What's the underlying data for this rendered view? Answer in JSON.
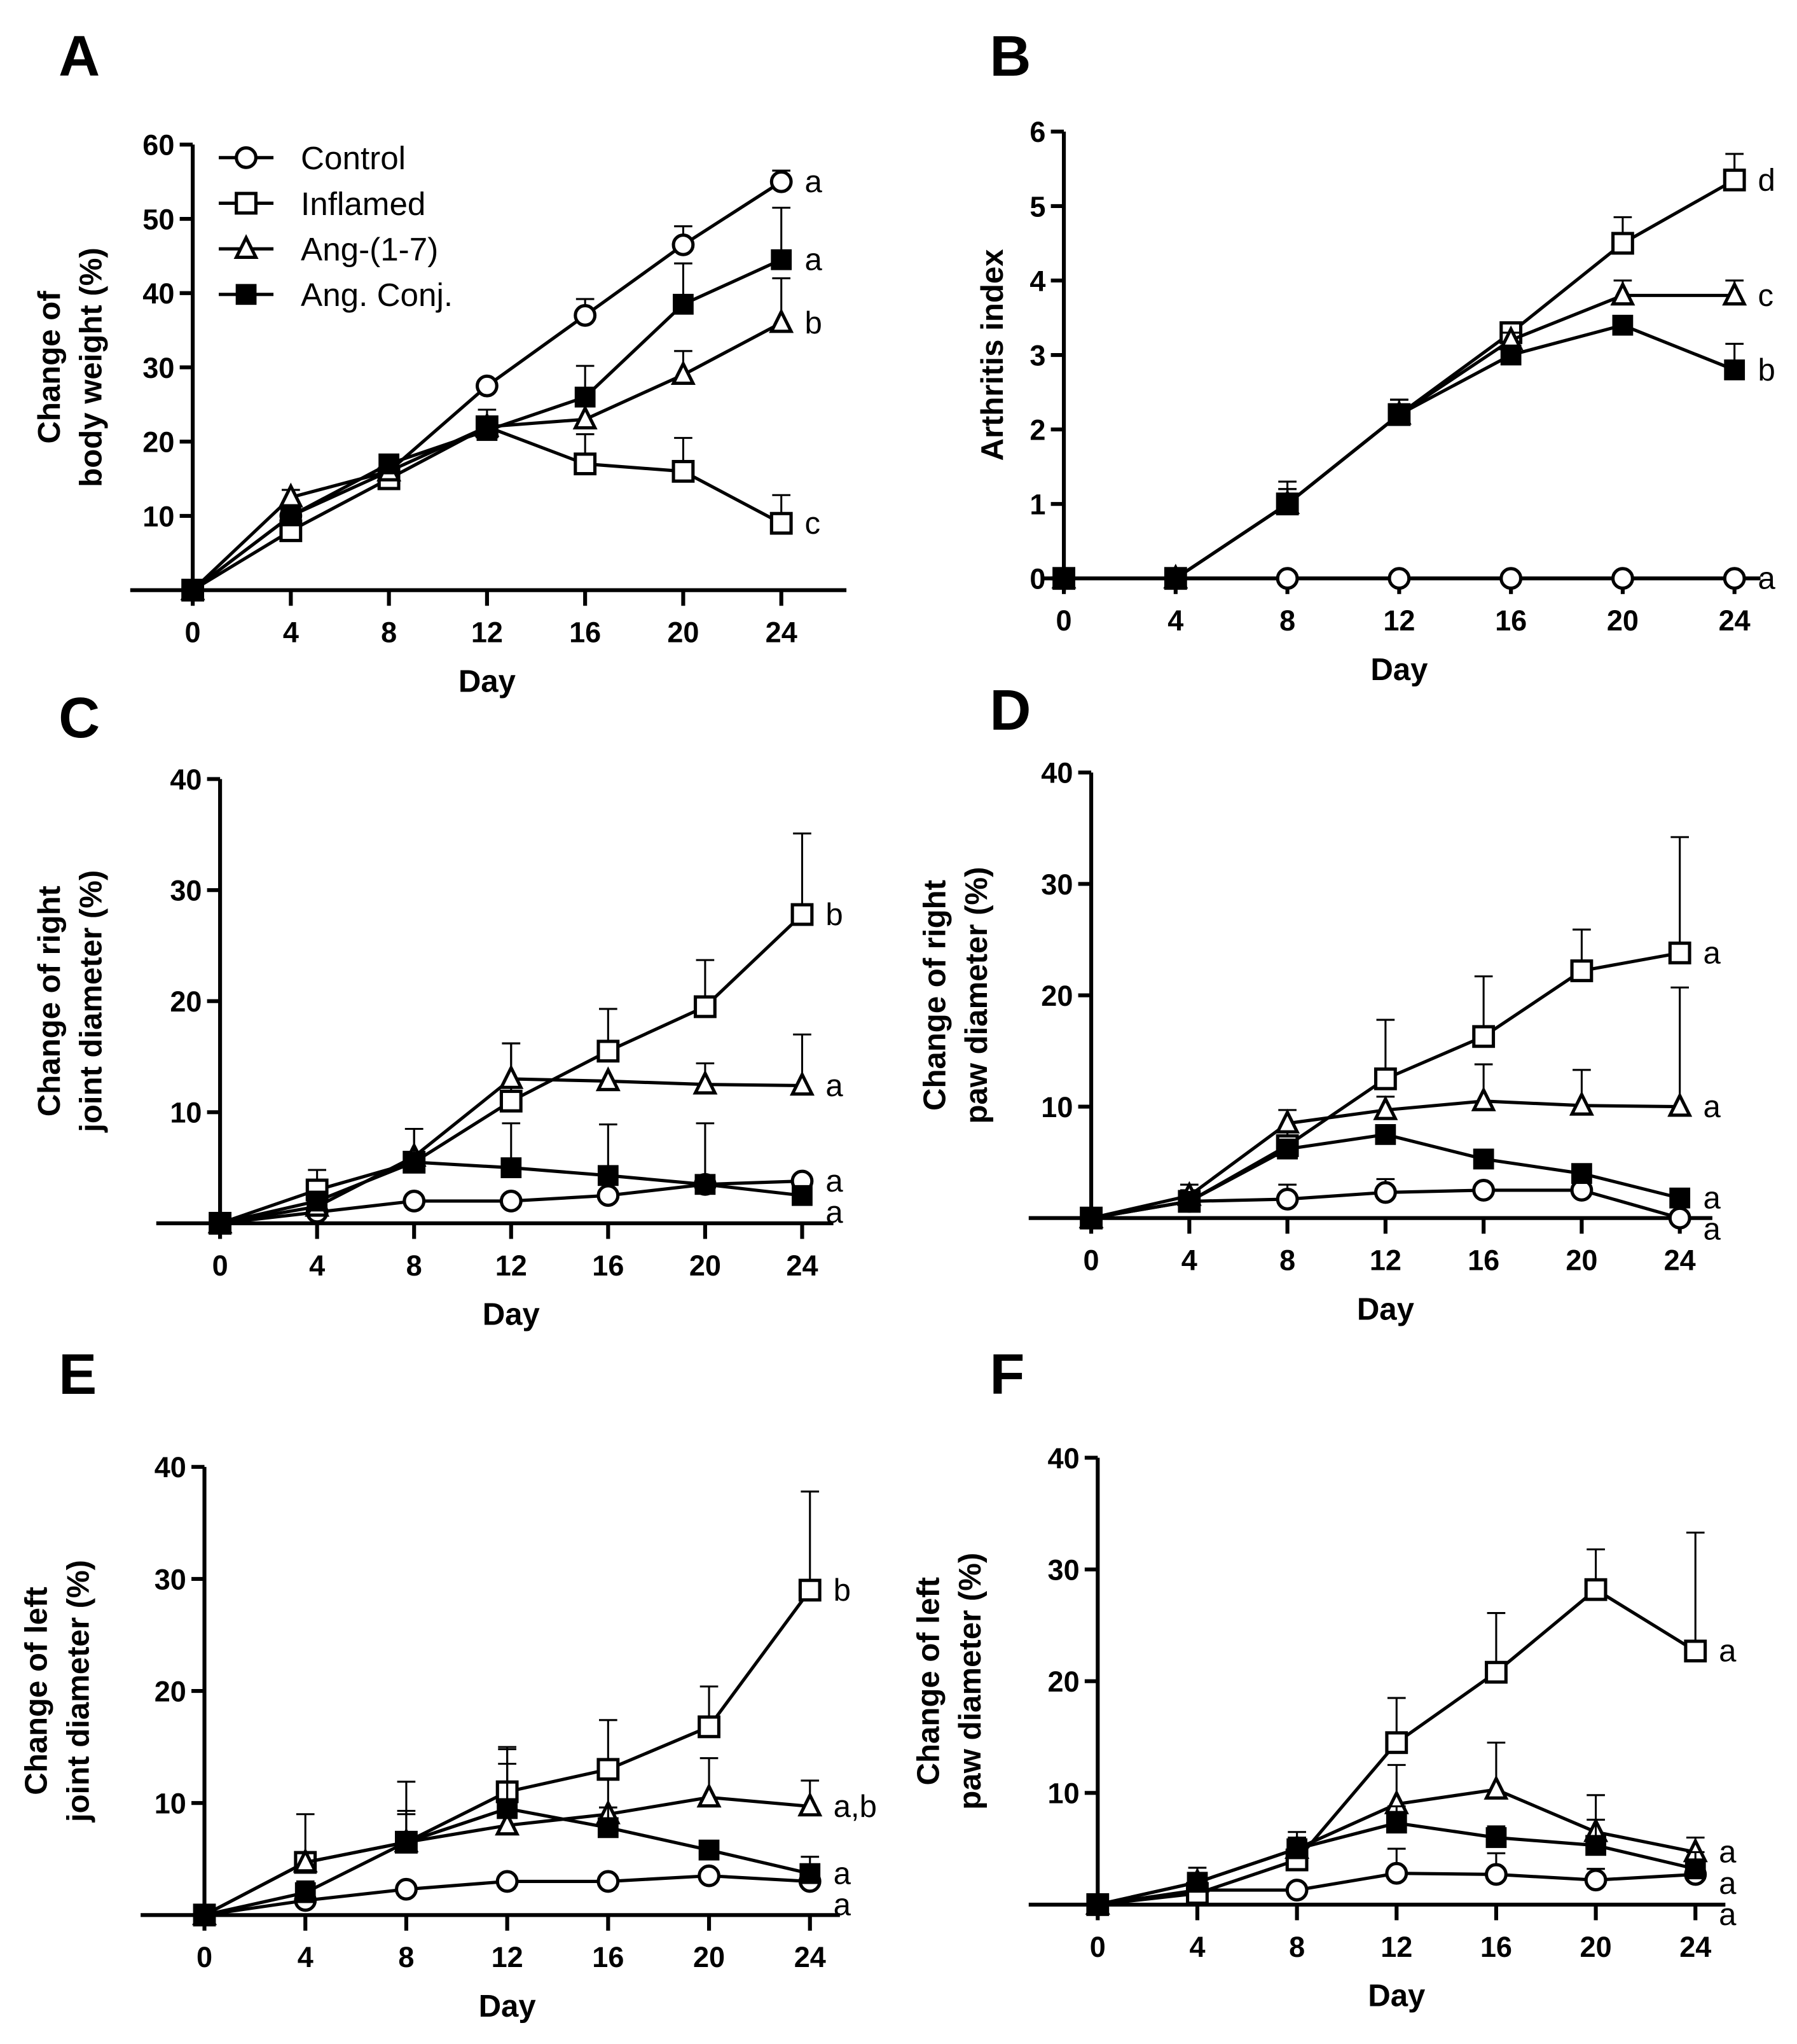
{
  "chart_data": [
    {
      "panel": "A",
      "type": "line",
      "xlabel": "Day",
      "ylabel": [
        "Change of",
        "body weight (%)"
      ],
      "x": [
        0,
        4,
        8,
        12,
        16,
        20,
        24
      ],
      "ylim": [
        0,
        60
      ],
      "yticks": [
        10,
        20,
        30,
        40,
        50,
        60
      ],
      "legend": {
        "placement": "top-left",
        "entries": [
          "Control",
          "Inflamed",
          "Ang-(1-7)",
          "Ang. Conj."
        ]
      },
      "series": [
        {
          "name": "Control",
          "values": [
            0,
            10,
            16,
            27.5,
            37,
            46.5,
            55
          ],
          "err": [
            0,
            0,
            0,
            0,
            2.2,
            2.5,
            1.5
          ],
          "sig": "a"
        },
        {
          "name": "Inflamed",
          "values": [
            0,
            8,
            15,
            22,
            17,
            16,
            9
          ],
          "err": [
            0,
            0,
            0,
            0,
            4,
            4.5,
            3.8
          ],
          "sig": "c"
        },
        {
          "name": "Ang-(1-7)",
          "values": [
            0,
            12.5,
            16,
            22,
            23,
            29,
            36
          ],
          "err": [
            0,
            1,
            0,
            1,
            0,
            3.2,
            6
          ],
          "sig": "b"
        },
        {
          "name": "Ang. Conj.",
          "values": [
            0,
            10,
            17,
            21.5,
            26,
            38.5,
            44.5
          ],
          "err": [
            0,
            0,
            0,
            2.8,
            4.2,
            5.5,
            7
          ],
          "sig": "a"
        }
      ]
    },
    {
      "panel": "B",
      "type": "line",
      "xlabel": "Day",
      "ylabel": [
        "Arthritis index"
      ],
      "x": [
        0,
        4,
        8,
        12,
        16,
        20,
        24
      ],
      "ylim": [
        0,
        6
      ],
      "yticks": [
        0,
        1,
        2,
        3,
        4,
        5,
        6
      ],
      "series": [
        {
          "name": "Control",
          "values": [
            0,
            0,
            0,
            0,
            0,
            0,
            0
          ],
          "err": [
            0,
            0,
            0,
            0,
            0,
            0,
            0
          ],
          "sig": "a"
        },
        {
          "name": "Inflamed",
          "values": [
            0,
            0,
            1,
            2.2,
            3.3,
            4.5,
            5.35
          ],
          "err": [
            0,
            0,
            0.3,
            0.2,
            0.1,
            0.35,
            0.35
          ],
          "sig": "d"
        },
        {
          "name": "Ang-(1-7)",
          "values": [
            0,
            0,
            1,
            2.2,
            3.2,
            3.8,
            3.8
          ],
          "err": [
            0,
            0,
            0.2,
            0.2,
            0.1,
            0.2,
            0.2
          ],
          "sig": "c"
        },
        {
          "name": "Ang. Conj.",
          "values": [
            0,
            0,
            1,
            2.2,
            3.0,
            3.4,
            2.8
          ],
          "err": [
            0,
            0,
            0.2,
            0.2,
            0.1,
            0.1,
            0.35
          ],
          "sig": "b"
        }
      ]
    },
    {
      "panel": "C",
      "type": "line",
      "xlabel": "Day",
      "ylabel": [
        "Change of right",
        "joint diameter (%)"
      ],
      "x": [
        0,
        4,
        8,
        12,
        16,
        20,
        24
      ],
      "ylim": [
        0,
        40
      ],
      "yticks": [
        10,
        20,
        30,
        40
      ],
      "series": [
        {
          "name": "Control",
          "values": [
            0,
            1,
            2,
            2,
            2.5,
            3.5,
            3.8
          ],
          "err": [
            0,
            0,
            0,
            0,
            0,
            0,
            0
          ],
          "sig": "a"
        },
        {
          "name": "Inflamed",
          "values": [
            0,
            3,
            5.5,
            11,
            15.5,
            19.5,
            27.8
          ],
          "err": [
            0,
            1.8,
            3,
            5.2,
            3.8,
            4.2,
            7.3
          ],
          "sig": "b"
        },
        {
          "name": "Ang-(1-7)",
          "values": [
            0,
            1.5,
            6,
            13,
            12.8,
            12.5,
            12.4
          ],
          "err": [
            0,
            0,
            0,
            3.2,
            0,
            1.9,
            4.6
          ],
          "sig": "a"
        },
        {
          "name": "Ang. Conj.",
          "values": [
            0,
            2,
            5.5,
            5,
            4.3,
            3.5,
            2.5
          ],
          "err": [
            0,
            0,
            3,
            4,
            4.6,
            5.5,
            0
          ],
          "sig": "a"
        }
      ]
    },
    {
      "panel": "D",
      "type": "line",
      "xlabel": "Day",
      "ylabel": [
        "Change of right",
        "paw diameter (%)"
      ],
      "x": [
        0,
        4,
        8,
        12,
        16,
        20,
        24
      ],
      "ylim": [
        0,
        40
      ],
      "yticks": [
        10,
        20,
        30,
        40
      ],
      "series": [
        {
          "name": "Control",
          "values": [
            0,
            1.5,
            1.7,
            2.3,
            2.5,
            2.5,
            0
          ],
          "err": [
            0,
            0,
            1.3,
            1.2,
            0,
            0,
            0
          ],
          "sig": "a"
        },
        {
          "name": "Inflamed",
          "values": [
            0,
            1.5,
            6.5,
            12.5,
            16.3,
            22.2,
            23.8
          ],
          "err": [
            0,
            1,
            1.5,
            5.3,
            5.4,
            3.7,
            10.4
          ],
          "sig": "a"
        },
        {
          "name": "Ang-(1-7)",
          "values": [
            0,
            2,
            8.5,
            9.7,
            10.5,
            10.1,
            10
          ],
          "err": [
            0,
            1,
            1.2,
            1.2,
            3.3,
            3.2,
            10.7
          ],
          "sig": "a"
        },
        {
          "name": "Ang. Conj.",
          "values": [
            0,
            1.5,
            6.2,
            7.5,
            5.3,
            4,
            1.8
          ],
          "err": [
            0,
            0,
            0,
            0,
            0,
            0,
            0
          ],
          "sig": "a"
        }
      ]
    },
    {
      "panel": "E",
      "type": "line",
      "xlabel": "Day",
      "ylabel": [
        "Change of left",
        "joint diameter (%)"
      ],
      "x": [
        0,
        4,
        8,
        12,
        16,
        20,
        24
      ],
      "ylim": [
        0,
        40
      ],
      "yticks": [
        10,
        20,
        30,
        40
      ],
      "series": [
        {
          "name": "Control",
          "values": [
            0,
            1.3,
            2.3,
            3,
            3,
            3.5,
            3
          ],
          "err": [
            0,
            0,
            0,
            0,
            0,
            0,
            0
          ],
          "sig": "a"
        },
        {
          "name": "Inflamed",
          "values": [
            0,
            4.7,
            6.5,
            11,
            13,
            16.8,
            29
          ],
          "err": [
            0,
            4.3,
            5.4,
            4,
            4.4,
            3.6,
            8.8
          ],
          "sig": "b"
        },
        {
          "name": "Ang-(1-7)",
          "values": [
            0,
            4.7,
            6.5,
            8,
            9,
            10.5,
            9.7
          ],
          "err": [
            0,
            0,
            2.5,
            6.8,
            3.2,
            3.5,
            2.3
          ],
          "sig": "a,b"
        },
        {
          "name": "Ang. Conj.",
          "values": [
            0,
            2,
            6.5,
            9.5,
            7.8,
            5.8,
            3.7
          ],
          "err": [
            0,
            1,
            2.8,
            4,
            1.8,
            0,
            1.5
          ],
          "sig": "a"
        }
      ]
    },
    {
      "panel": "F",
      "type": "line",
      "xlabel": "Day",
      "ylabel": [
        "Change of left",
        "paw diameter (%)"
      ],
      "x": [
        0,
        4,
        8,
        12,
        16,
        20,
        24
      ],
      "ylim": [
        0,
        40
      ],
      "yticks": [
        10,
        20,
        30,
        40
      ],
      "series": [
        {
          "name": "Control",
          "values": [
            0,
            1.3,
            1.3,
            2.8,
            2.7,
            2.2,
            2.7
          ],
          "err": [
            0,
            0,
            0,
            2.2,
            1.9,
            1,
            0
          ],
          "sig": "a"
        },
        {
          "name": "Inflamed",
          "values": [
            0,
            1,
            4,
            14.5,
            20.8,
            28.2,
            22.7
          ],
          "err": [
            0,
            0,
            1.5,
            4,
            5.3,
            3.6,
            10.6
          ],
          "sig": "a"
        },
        {
          "name": "Ang-(1-7)",
          "values": [
            0,
            2,
            5,
            9,
            10.3,
            6.5,
            4.7
          ],
          "err": [
            0,
            1.3,
            1.5,
            3.5,
            4.2,
            3.3,
            1.3
          ],
          "sig": "a"
        },
        {
          "name": "Ang. Conj.",
          "values": [
            0,
            2,
            5,
            7.3,
            6,
            5.3,
            3.2
          ],
          "err": [
            0,
            0.5,
            1,
            1.5,
            1,
            2.3,
            1.5
          ],
          "sig": "a"
        }
      ]
    }
  ]
}
